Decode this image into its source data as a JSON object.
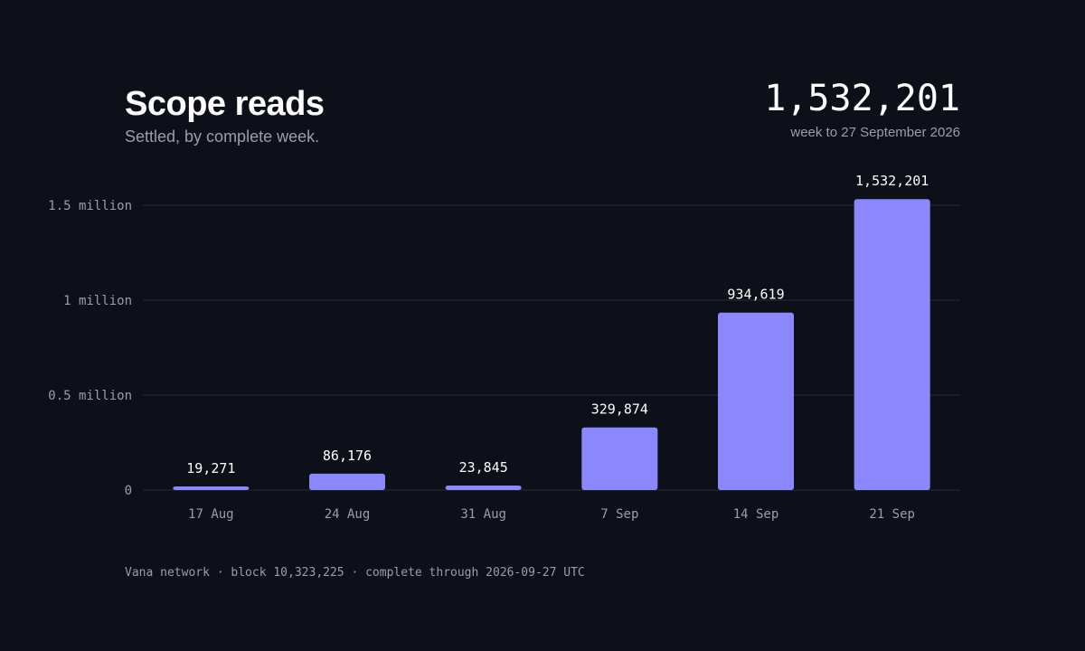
{
  "header": {
    "title": "Scope reads",
    "subtitle": "Settled, by complete week."
  },
  "headline": {
    "value": "1,532,201",
    "caption": "week to 27 September 2026"
  },
  "footer": {
    "text": "Vana network · block 10,323,225 · complete through 2026-09-27 UTC"
  },
  "colors": {
    "bar": "#8b88ff",
    "background": "#0e1019",
    "grid": "#262a3a"
  },
  "chart_data": {
    "type": "bar",
    "title": "Scope reads",
    "subtitle": "Settled, by complete week.",
    "categories": [
      "17 Aug",
      "24 Aug",
      "31 Aug",
      "7 Sep",
      "14 Sep",
      "21 Sep"
    ],
    "values": [
      19271,
      86176,
      23845,
      329874,
      934619,
      1532201
    ],
    "data_labels": [
      "19,271",
      "86,176",
      "23,845",
      "329,874",
      "934,619",
      "1,532,201"
    ],
    "ylim": [
      0,
      1500000
    ],
    "yticks": [
      0,
      500000,
      1000000,
      1500000
    ],
    "ytick_labels": [
      "0",
      "0.5 million",
      "1 million",
      "1.5 million"
    ],
    "grid": true,
    "legend": "none"
  }
}
